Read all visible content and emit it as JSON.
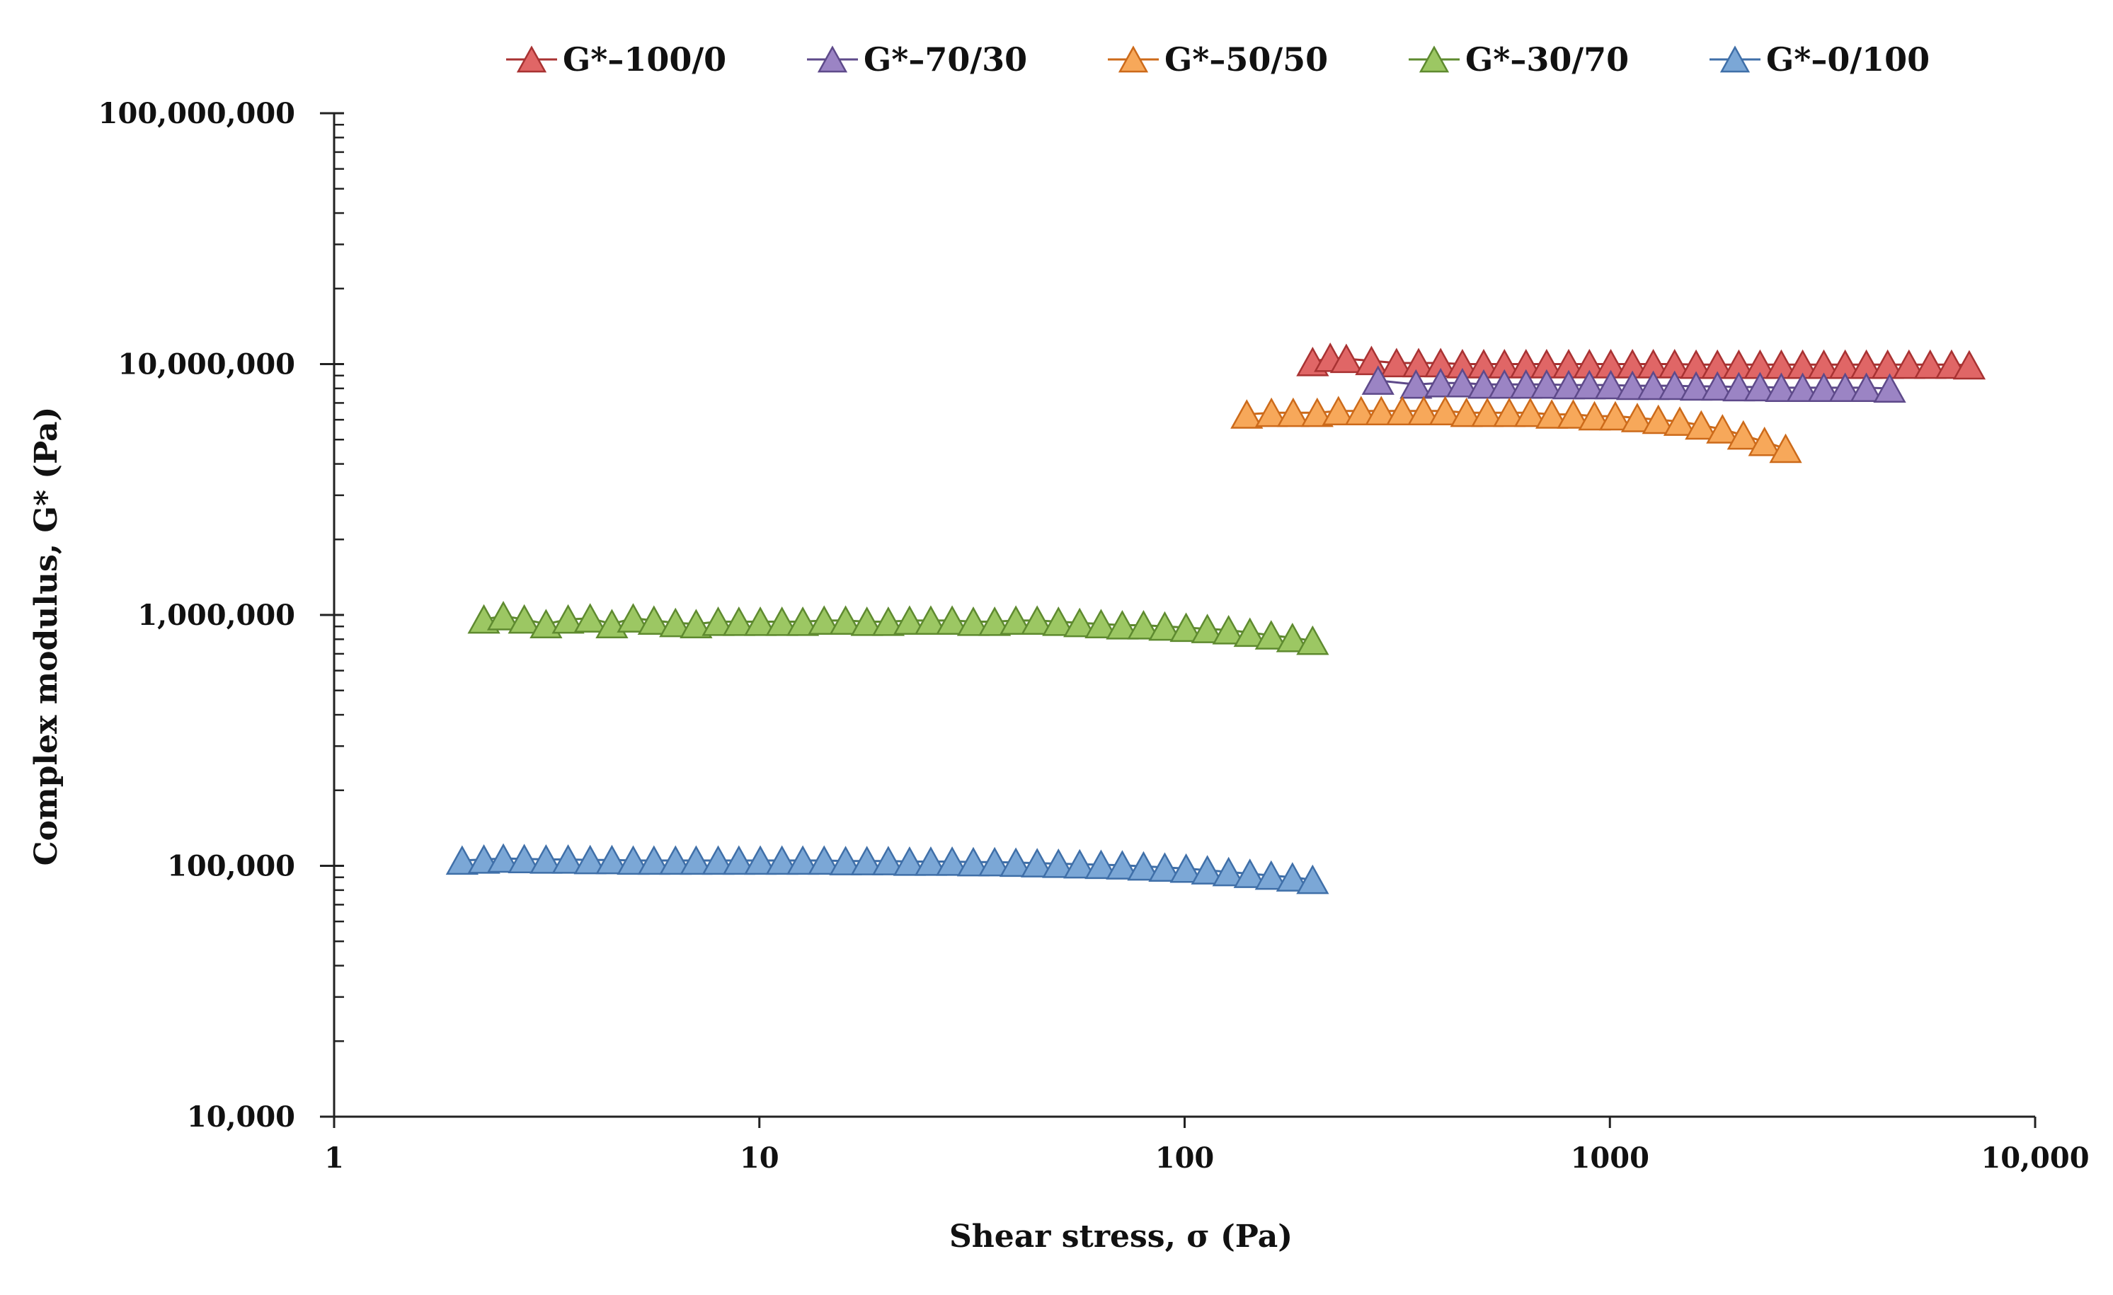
{
  "chart_data": {
    "type": "scatter",
    "title": "",
    "xlabel": "Shear stress, σ (Pa)",
    "ylabel": "Complex modulus, G* (Pa)",
    "xscale": "log",
    "yscale": "log",
    "xlim": [
      1,
      10000
    ],
    "ylim": [
      10000,
      100000000
    ],
    "x_ticks": [
      1,
      10,
      100,
      1000,
      10000
    ],
    "x_tick_labels": [
      "1",
      "10",
      "100",
      "1000",
      "10,000"
    ],
    "y_ticks": [
      10000,
      100000,
      1000000,
      10000000,
      100000000
    ],
    "y_tick_labels": [
      "10,000",
      "100,000",
      "1,000,000",
      "10,000,000",
      "100,000,000"
    ],
    "legend_position": "top",
    "marker": "triangle",
    "series": [
      {
        "name": "G*–100/0",
        "color": "#e06666",
        "stroke": "#a83232",
        "x": [
          200,
          220,
          240,
          275,
          315,
          355,
          400,
          450,
          505,
          565,
          635,
          710,
          800,
          895,
          1005,
          1130,
          1265,
          1420,
          1595,
          1790,
          2010,
          2255,
          2530,
          2840,
          3185,
          3575,
          4010,
          4500,
          5050,
          5665,
          6360,
          7000
        ],
        "y": [
          10200000,
          10600000,
          10500000,
          10300000,
          10100000,
          10100000,
          10100000,
          10000000,
          10000000,
          10000000,
          10000000,
          10000000,
          10000000,
          10000000,
          10000000,
          10000000,
          10000000,
          10000000,
          9950000,
          9950000,
          9950000,
          9950000,
          9950000,
          9950000,
          9950000,
          9950000,
          9950000,
          9950000,
          9950000,
          9950000,
          9950000,
          9900000
        ]
      },
      {
        "name": "G*–70/30",
        "color": "#9b84c4",
        "stroke": "#5e4a8a",
        "x": [
          285,
          350,
          400,
          450,
          505,
          565,
          635,
          710,
          800,
          895,
          1005,
          1130,
          1265,
          1420,
          1595,
          1790,
          2010,
          2255,
          2530,
          2840,
          3185,
          3575,
          4010,
          4550
        ],
        "y": [
          8600000,
          8300000,
          8400000,
          8400000,
          8300000,
          8300000,
          8300000,
          8300000,
          8250000,
          8250000,
          8250000,
          8200000,
          8200000,
          8200000,
          8150000,
          8150000,
          8100000,
          8100000,
          8050000,
          8050000,
          8050000,
          8050000,
          8050000,
          8000000
        ]
      },
      {
        "name": "G*–50/50",
        "color": "#f7a85a",
        "stroke": "#cc6a1a",
        "x": [
          140,
          160,
          180,
          205,
          230,
          260,
          290,
          325,
          365,
          410,
          460,
          515,
          580,
          650,
          730,
          820,
          920,
          1030,
          1160,
          1300,
          1460,
          1640,
          1840,
          2060,
          2310,
          2590
        ],
        "y": [
          6300000,
          6400000,
          6400000,
          6400000,
          6500000,
          6500000,
          6500000,
          6500000,
          6500000,
          6500000,
          6400000,
          6400000,
          6400000,
          6400000,
          6300000,
          6300000,
          6200000,
          6200000,
          6100000,
          6000000,
          5900000,
          5700000,
          5500000,
          5200000,
          4900000,
          4600000
        ]
      },
      {
        "name": "G*–30/70",
        "color": "#9cc763",
        "stroke": "#5e8a2f",
        "x": [
          2.25,
          2.5,
          2.8,
          3.15,
          3.55,
          4.0,
          4.5,
          5.05,
          5.65,
          6.35,
          7.1,
          8.0,
          8.95,
          10.05,
          11.3,
          12.65,
          14.2,
          15.95,
          17.9,
          20.1,
          22.55,
          25.3,
          28.4,
          31.85,
          35.75,
          40.1,
          45.0,
          50.5,
          56.65,
          63.6,
          71.35,
          80.05,
          89.8,
          100.8,
          113.1,
          126.9,
          142.4,
          159.8,
          179.3,
          200
        ],
        "y": [
          960000,
          990000,
          960000,
          920000,
          960000,
          970000,
          920000,
          970000,
          950000,
          930000,
          920000,
          940000,
          940000,
          940000,
          940000,
          940000,
          950000,
          950000,
          940000,
          940000,
          950000,
          950000,
          950000,
          940000,
          940000,
          950000,
          950000,
          940000,
          930000,
          920000,
          910000,
          910000,
          900000,
          890000,
          880000,
          870000,
          850000,
          830000,
          810000,
          790000
        ]
      },
      {
        "name": "G*–0/100",
        "color": "#7ba7d6",
        "stroke": "#3f6fa8",
        "x": [
          2.0,
          2.25,
          2.5,
          2.8,
          3.15,
          3.55,
          4.0,
          4.5,
          5.05,
          5.65,
          6.35,
          7.1,
          8.0,
          8.95,
          10.05,
          11.3,
          12.65,
          14.2,
          15.95,
          17.9,
          20.1,
          22.55,
          25.3,
          28.4,
          31.85,
          35.75,
          40.1,
          45.0,
          50.5,
          56.65,
          63.6,
          71.35,
          80.05,
          89.8,
          100.8,
          113.1,
          126.9,
          142.4,
          159.8,
          179.3,
          200
        ],
        "y": [
          105000,
          106000,
          107000,
          106500,
          106000,
          106000,
          105500,
          105500,
          105000,
          105000,
          105000,
          105000,
          105000,
          105000,
          105000,
          105000,
          105000,
          105000,
          104500,
          104500,
          104500,
          104000,
          104000,
          104000,
          103500,
          103500,
          103000,
          102500,
          102000,
          101500,
          101000,
          100500,
          99500,
          98500,
          97500,
          96000,
          94500,
          93000,
          91500,
          90000,
          88000
        ]
      }
    ]
  }
}
